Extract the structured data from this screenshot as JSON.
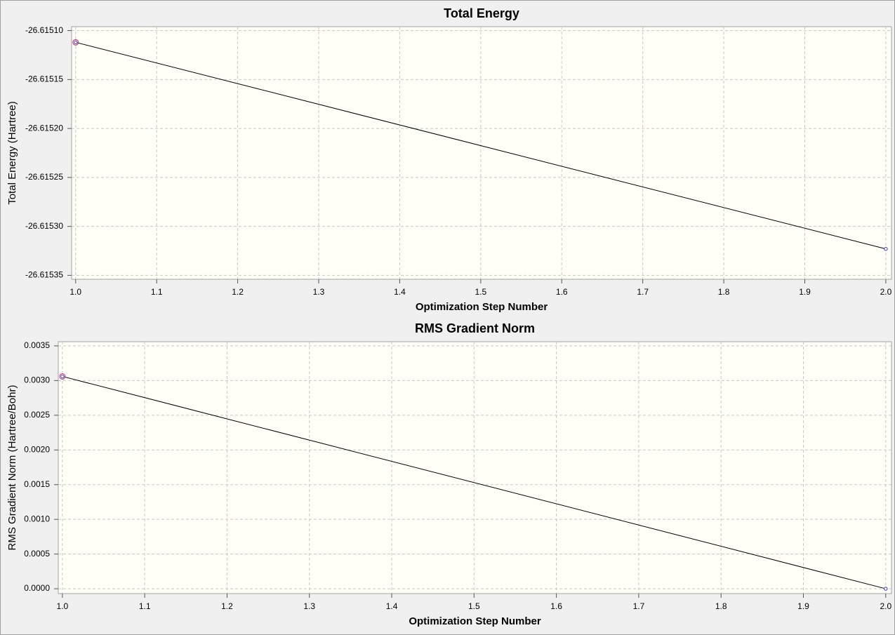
{
  "chart_data": [
    {
      "type": "line",
      "title": "Total Energy",
      "x_label": "Optimization Step Number",
      "y_label": "Total Energy (Hartree)",
      "x": [
        1,
        2
      ],
      "values": [
        -26.615112,
        -26.615323
      ],
      "color": "#000000",
      "marker_color": "#3333cc",
      "xlim": [
        0.995,
        2.007
      ],
      "xticks": [
        {
          "value": 1.0,
          "label": "1.0"
        },
        1.1,
        1.2,
        1.3,
        1.4,
        1.5,
        1.6,
        1.7,
        1.8,
        1.9,
        {
          "value": 2.0,
          "label": "2.0"
        }
      ],
      "ylim": [
        -26.615354,
        -26.615096
      ],
      "yticks": [
        {
          "value": -26.6151,
          "label": "-26.61510"
        },
        -26.61515,
        {
          "value": -26.6152,
          "label": "-26.61520"
        },
        -26.61525,
        {
          "value": -26.6153,
          "label": "-26.61530"
        },
        -26.61535
      ],
      "grid": true
    },
    {
      "type": "line",
      "title": "RMS Gradient Norm",
      "x_label": "Optimization Step Number",
      "y_label": "RMS Gradient Norm (Hartree/Bohr)",
      "x": [
        1,
        2
      ],
      "values": [
        0.00306,
        0.0
      ],
      "color": "#000000",
      "marker_color": "#3333cc",
      "xlim": [
        0.995,
        2.007
      ],
      "xticks": [
        {
          "value": 1.0,
          "label": "1.0"
        },
        1.1,
        1.2,
        1.3,
        1.4,
        1.5,
        1.6,
        1.7,
        1.8,
        1.9,
        {
          "value": 2.0,
          "label": "2.0"
        }
      ],
      "ylim": [
        -7e-05,
        0.00356
      ],
      "yticks": [
        {
          "value": 0.0,
          "label": "0.0000"
        },
        0.0005,
        {
          "value": 0.001,
          "label": "0.0010"
        },
        0.0015,
        {
          "value": 0.002,
          "label": "0.0020"
        },
        0.0025,
        {
          "value": 0.003,
          "label": "0.0030"
        },
        0.0035
      ],
      "grid": true
    }
  ]
}
